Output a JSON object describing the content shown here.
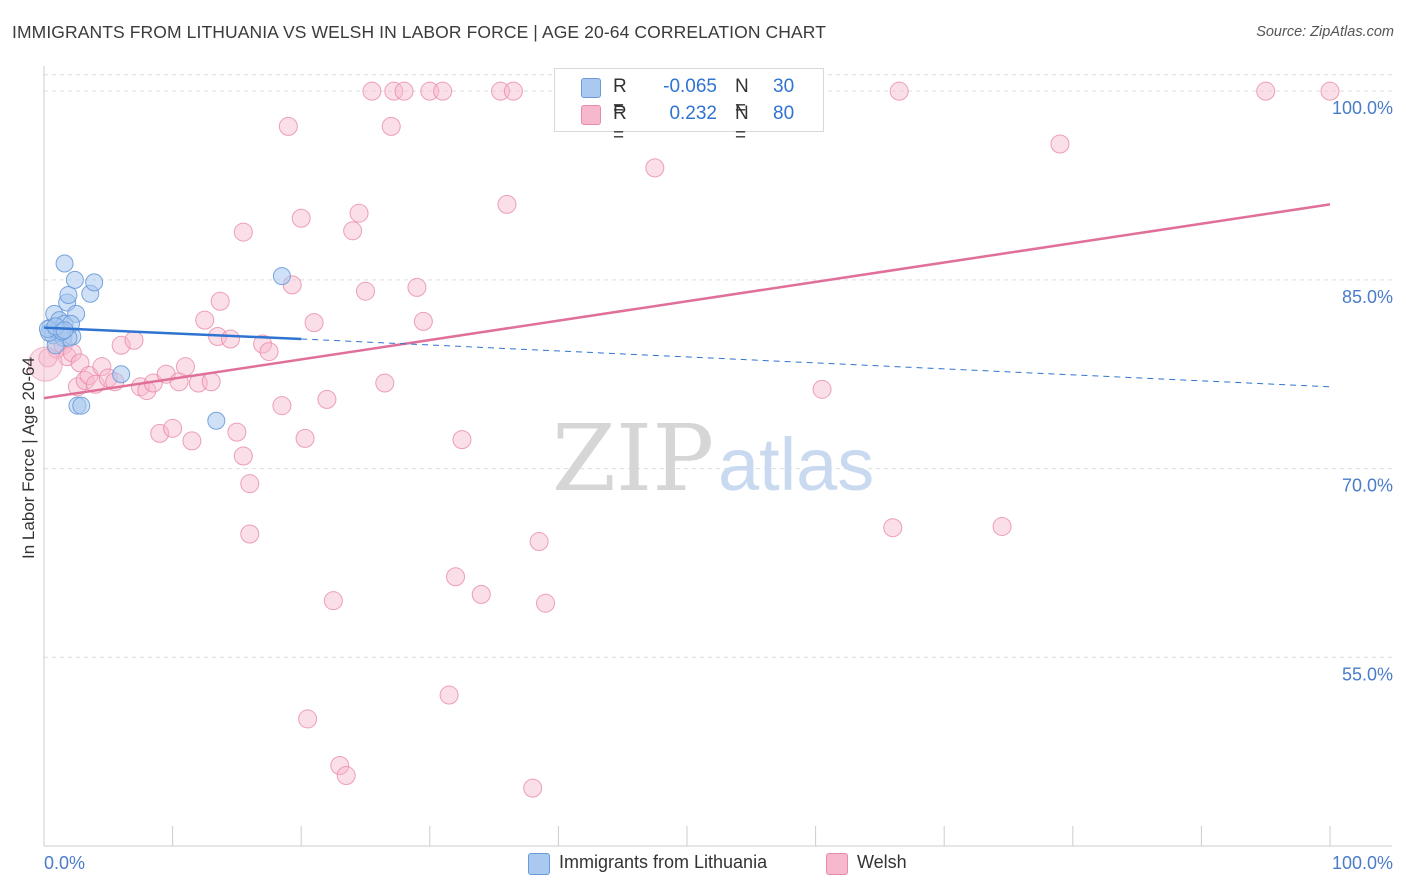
{
  "title": "IMMIGRANTS FROM LITHUANIA VS WELSH IN LABOR FORCE | AGE 20-64 CORRELATION CHART",
  "source": "Source: ZipAtlas.com",
  "watermark": {
    "zip": "ZIP",
    "atlas": "atlas"
  },
  "legend": {
    "r_label": "R =",
    "n_label": "N =",
    "series1": {
      "r": "-0.065",
      "n": "30"
    },
    "series2": {
      "r": "0.232",
      "n": "80"
    }
  },
  "bottom_legend": {
    "series1": "Immigrants from Lithuania",
    "series2": "Welsh"
  },
  "colors": {
    "blue_fill": "#a9c9f0",
    "blue_stroke": "#6a9bd8",
    "blue_line": "#2f74d0",
    "pink_fill": "#f6b8cc",
    "pink_stroke": "#e88aa8",
    "pink_line": "#e0709a",
    "tick_label": "#4a7cc9",
    "grid": "#dddddd"
  },
  "chart_data": {
    "type": "scatter",
    "title": "IMMIGRANTS FROM LITHUANIA VS WELSH IN LABOR FORCE | AGE 20-64 CORRELATION CHART",
    "xlabel": "",
    "ylabel": "In Labor Force | Age 20-64",
    "xlim": [
      0,
      100
    ],
    "ylim": [
      40,
      102
    ],
    "x_tick_labels": [
      "0.0%",
      "100.0%"
    ],
    "y_ticks": [
      55,
      70,
      85,
      100
    ],
    "y_tick_labels": [
      "55.0%",
      "70.0%",
      "85.0%",
      "100.0%"
    ],
    "grid": "horizontal dashed",
    "series": [
      {
        "name": "Immigrants from Lithuania",
        "color": "#a9c9f0",
        "r": -0.065,
        "n": 30,
        "trend": {
          "x0": 0,
          "y0": 81.2,
          "x1": 20,
          "y1": 80.3,
          "dashed_to_x": 100,
          "dashed_to_y": 76.5
        },
        "points": [
          [
            0.5,
            81.2
          ],
          [
            0.7,
            80.6
          ],
          [
            0.8,
            82.3
          ],
          [
            1.0,
            81.0
          ],
          [
            1.2,
            81.8
          ],
          [
            1.4,
            80.9
          ],
          [
            1.6,
            81.5
          ],
          [
            1.5,
            80.4
          ],
          [
            1.8,
            83.2
          ],
          [
            1.6,
            86.3
          ],
          [
            1.9,
            83.8
          ],
          [
            2.2,
            80.5
          ],
          [
            2.4,
            85.0
          ],
          [
            2.5,
            82.3
          ],
          [
            2.1,
            81.5
          ],
          [
            2.6,
            75.0
          ],
          [
            3.6,
            83.9
          ],
          [
            3.9,
            84.8
          ],
          [
            1.9,
            80.4
          ],
          [
            1.2,
            80.8
          ],
          [
            0.9,
            79.8
          ],
          [
            0.4,
            80.8
          ],
          [
            0.3,
            81.1
          ],
          [
            2.9,
            75.0
          ],
          [
            6.0,
            77.5
          ],
          [
            13.4,
            73.8
          ],
          [
            18.5,
            85.3
          ],
          [
            1.4,
            80.9
          ],
          [
            0.9,
            81.3
          ],
          [
            1.6,
            81.0
          ]
        ]
      },
      {
        "name": "Welsh",
        "color": "#f6b8cc",
        "r": 0.232,
        "n": 80,
        "trend": {
          "x0": 0,
          "y0": 75.6,
          "x1": 100,
          "y1": 91.0
        },
        "points": [
          [
            0.3,
            78.8
          ],
          [
            1.0,
            79.5
          ],
          [
            1.5,
            79.8
          ],
          [
            1.8,
            78.9
          ],
          [
            2.2,
            79.2
          ],
          [
            2.6,
            76.5
          ],
          [
            2.8,
            78.4
          ],
          [
            3.2,
            77.0
          ],
          [
            3.5,
            77.4
          ],
          [
            4.0,
            76.7
          ],
          [
            4.5,
            78.1
          ],
          [
            5.0,
            77.2
          ],
          [
            5.5,
            76.9
          ],
          [
            6.0,
            79.8
          ],
          [
            7.0,
            80.2
          ],
          [
            7.5,
            76.5
          ],
          [
            8.0,
            76.2
          ],
          [
            8.5,
            76.8
          ],
          [
            9.0,
            72.8
          ],
          [
            9.5,
            77.5
          ],
          [
            10.0,
            73.2
          ],
          [
            10.5,
            76.9
          ],
          [
            11.0,
            78.1
          ],
          [
            11.5,
            72.2
          ],
          [
            12.0,
            76.8
          ],
          [
            12.5,
            81.8
          ],
          [
            13.0,
            76.9
          ],
          [
            13.5,
            80.5
          ],
          [
            13.7,
            83.3
          ],
          [
            14.5,
            80.3
          ],
          [
            15.0,
            72.9
          ],
          [
            15.5,
            71.0
          ],
          [
            15.5,
            88.8
          ],
          [
            16.0,
            68.8
          ],
          [
            16.0,
            64.8
          ],
          [
            17.0,
            79.9
          ],
          [
            17.5,
            79.3
          ],
          [
            18.5,
            75.0
          ],
          [
            19.0,
            97.2
          ],
          [
            19.3,
            84.6
          ],
          [
            20.0,
            89.9
          ],
          [
            20.3,
            72.4
          ],
          [
            20.5,
            50.1
          ],
          [
            21.0,
            81.6
          ],
          [
            22.0,
            75.5
          ],
          [
            22.5,
            59.5
          ],
          [
            23.0,
            46.4
          ],
          [
            23.5,
            45.6
          ],
          [
            24.0,
            88.9
          ],
          [
            24.5,
            90.3
          ],
          [
            25.0,
            84.1
          ],
          [
            25.5,
            100.0
          ],
          [
            26.5,
            76.8
          ],
          [
            27.0,
            97.2
          ],
          [
            27.2,
            100.0
          ],
          [
            28.0,
            100.0
          ],
          [
            29.0,
            84.4
          ],
          [
            29.5,
            81.7
          ],
          [
            30.0,
            100.0
          ],
          [
            31.0,
            100.0
          ],
          [
            31.5,
            52.0
          ],
          [
            32.0,
            61.4
          ],
          [
            32.5,
            72.3
          ],
          [
            34.0,
            60.0
          ],
          [
            35.5,
            100.0
          ],
          [
            36.0,
            91.0
          ],
          [
            36.5,
            100.0
          ],
          [
            38.0,
            44.6
          ],
          [
            38.5,
            64.2
          ],
          [
            39.0,
            59.3
          ],
          [
            42.0,
            100.0
          ],
          [
            43.0,
            100.0
          ],
          [
            47.5,
            93.9
          ],
          [
            60.5,
            76.3
          ],
          [
            66.0,
            65.3
          ],
          [
            66.5,
            100.0
          ],
          [
            74.5,
            65.4
          ],
          [
            79.0,
            95.8
          ],
          [
            95.0,
            100.0
          ],
          [
            100.0,
            100.0
          ]
        ]
      }
    ]
  }
}
